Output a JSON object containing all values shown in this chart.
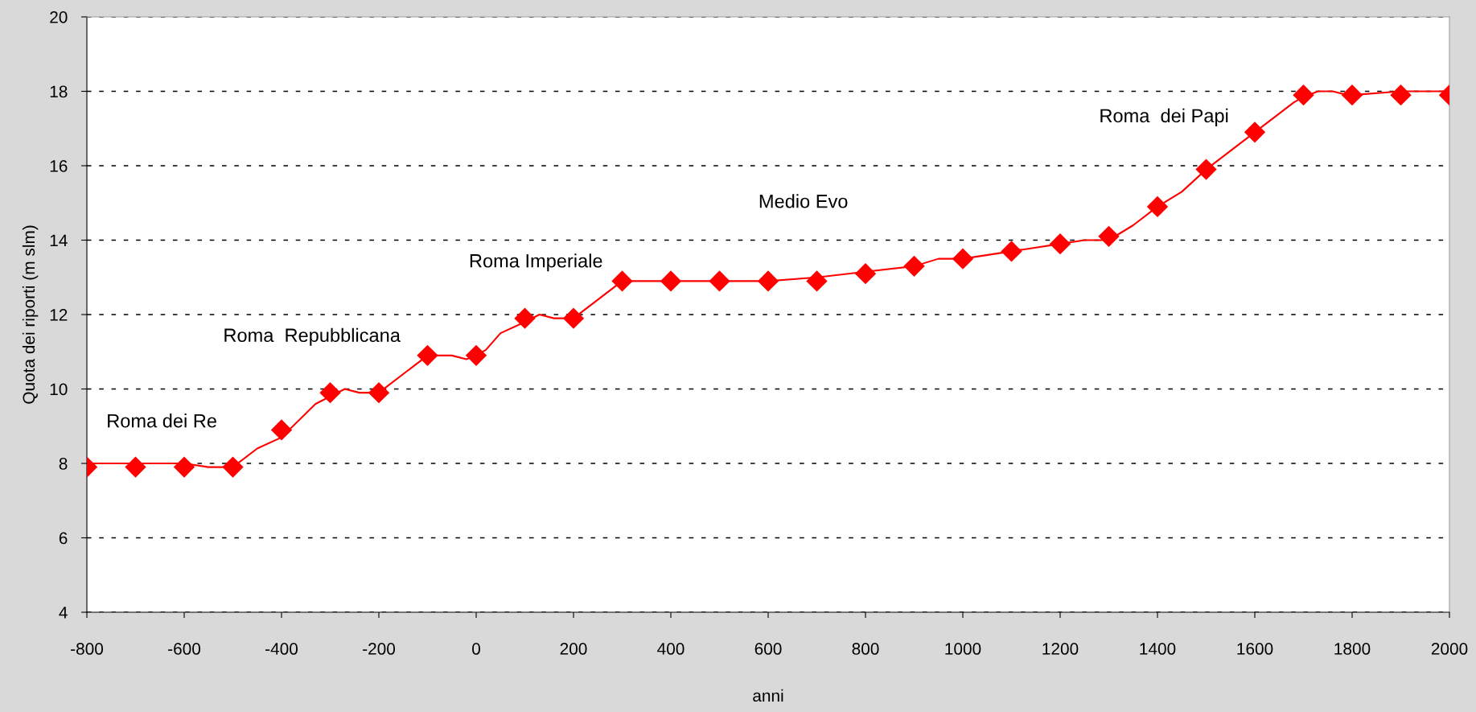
{
  "chart_data": {
    "type": "line",
    "xlabel": "anni",
    "ylabel": "Quota dei riporti (m slm)",
    "xlim": [
      -800,
      2000
    ],
    "xticks": [
      -800,
      -600,
      -400,
      -200,
      0,
      200,
      400,
      600,
      800,
      1000,
      1200,
      1400,
      1600,
      1800,
      2000
    ],
    "ylim": [
      4,
      20
    ],
    "yticks": [
      4,
      6,
      8,
      10,
      12,
      14,
      16,
      18,
      20
    ],
    "grid": "y",
    "series": [
      {
        "color": "#ff0000",
        "marker": "none",
        "line_style": "solid",
        "x": [
          -800,
          -700,
          -600,
          -550,
          -500,
          -450,
          -400,
          -330,
          -300,
          -270,
          -240,
          -200,
          -100,
          -50,
          -20,
          0,
          20,
          50,
          100,
          130,
          160,
          200,
          300,
          400,
          500,
          600,
          700,
          800,
          900,
          950,
          1000,
          1100,
          1200,
          1250,
          1300,
          1350,
          1400,
          1450,
          1500,
          1600,
          1680,
          1700,
          1730,
          1760,
          1790,
          1800,
          1900,
          2000
        ],
        "values": [
          8,
          8,
          8,
          7.9,
          7.9,
          8.4,
          8.7,
          9.6,
          9.8,
          10.0,
          9.9,
          9.9,
          10.9,
          10.9,
          10.8,
          10.9,
          11.05,
          11.5,
          11.8,
          12.0,
          11.9,
          11.9,
          12.9,
          12.9,
          12.9,
          12.9,
          13.0,
          13.15,
          13.3,
          13.5,
          13.5,
          13.7,
          13.9,
          14.0,
          14.0,
          14.4,
          14.9,
          15.3,
          15.9,
          16.9,
          17.7,
          17.85,
          18.0,
          18.0,
          17.9,
          17.9,
          18.0,
          18.0
        ]
      },
      {
        "type": "scatter",
        "color": "#ff0000",
        "marker": "diamond",
        "x": [
          -800,
          -700,
          -600,
          -500,
          -400,
          -300,
          -200,
          -100,
          0,
          100,
          200,
          300,
          400,
          500,
          600,
          700,
          800,
          900,
          1000,
          1100,
          1200,
          1300,
          1400,
          1500,
          1600,
          1700,
          1800,
          1900,
          2000
        ],
        "values": [
          7.9,
          7.9,
          7.9,
          7.9,
          8.9,
          9.9,
          9.9,
          10.9,
          10.9,
          11.9,
          11.9,
          12.9,
          12.9,
          12.9,
          12.9,
          12.9,
          13.1,
          13.3,
          13.5,
          13.7,
          13.9,
          14.1,
          14.9,
          15.9,
          16.9,
          17.9,
          17.9,
          17.9,
          17.9
        ]
      }
    ],
    "annotations": [
      "Roma dei Re",
      "Roma  Repubblicana",
      "Roma Imperiale",
      "Medio Evo",
      "Roma  dei Papi"
    ]
  }
}
